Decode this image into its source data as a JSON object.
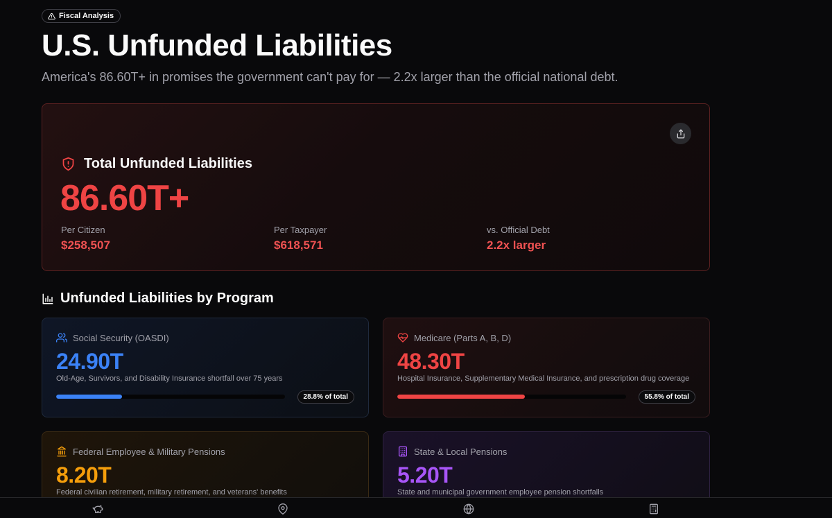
{
  "header": {
    "badge": "Fiscal Analysis",
    "title": "U.S. Unfunded Liabilities",
    "subtitle": "America's 86.60T+ in promises the government can't pay for — 2.2x larger than the official national debt."
  },
  "hero": {
    "label": "Total Unfunded Liabilities",
    "value": "86.60T+",
    "stats": [
      {
        "label": "Per Citizen",
        "value": "$258,507"
      },
      {
        "label": "Per Taxpayer",
        "value": "$618,571"
      },
      {
        "label": "vs. Official Debt",
        "value": "2.2x larger"
      }
    ]
  },
  "section": {
    "title": "Unfunded Liabilities by Program"
  },
  "programs": [
    {
      "label": "Social Security (OASDI)",
      "value": "24.90T",
      "description": "Old-Age, Survivors, and Disability Insurance shortfall over 75 years",
      "share_label": "28.8% of total",
      "share": 0.288,
      "color": "#3b82f6",
      "icon": "users-icon"
    },
    {
      "label": "Medicare (Parts A, B, D)",
      "value": "48.30T",
      "description": "Hospital Insurance, Supplementary Medical Insurance, and prescription drug coverage",
      "share_label": "55.8% of total",
      "share": 0.558,
      "color": "#ef4444",
      "icon": "heart-pulse-icon"
    },
    {
      "label": "Federal Employee & Military Pensions",
      "value": "8.20T",
      "description": "Federal civilian retirement, military retirement, and veterans' benefits",
      "color": "#f59e0b",
      "icon": "landmark-icon"
    },
    {
      "label": "State & Local Pensions",
      "value": "5.20T",
      "description": "State and municipal government employee pension shortfalls",
      "color": "#a855f7",
      "icon": "building-icon"
    }
  ],
  "nav": {
    "icons": [
      "piggy-bank-icon",
      "map-pin-icon",
      "globe-icon",
      "calculator-icon"
    ]
  }
}
